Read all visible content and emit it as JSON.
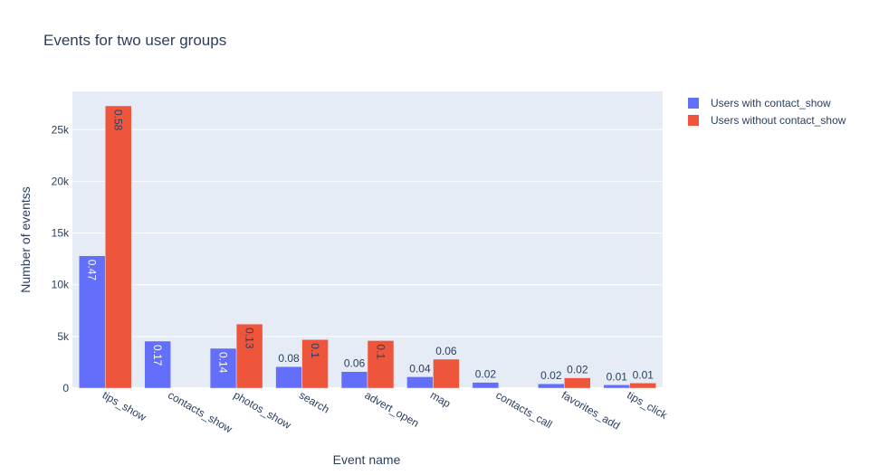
{
  "chart_data": {
    "type": "bar",
    "title": "Events for two user groups",
    "xlabel": "Event name",
    "ylabel": "Number of eventss",
    "categories": [
      "tips_show",
      "contacts_show",
      "photos_show",
      "search",
      "advert_open",
      "map",
      "contacts_call",
      "favorites_add",
      "tips_click"
    ],
    "series": [
      {
        "name": "Users with contact_show",
        "color": "#636efa",
        "values": [
          12800,
          4550,
          3850,
          2080,
          1600,
          1100,
          560,
          420,
          320
        ],
        "labels": [
          "0.47",
          "0.17",
          "0.14",
          "0.08",
          "0.06",
          "0.04",
          "0.02",
          "0.02",
          "0.01"
        ]
      },
      {
        "name": "Users without contact_show",
        "color": "#ef553b",
        "values": [
          27300,
          0,
          6200,
          4700,
          4600,
          2800,
          0,
          1000,
          500
        ],
        "labels": [
          "0.58",
          "",
          "0.13",
          "0.1",
          "0.1",
          "0.06",
          "",
          "0.02",
          "0.01"
        ]
      }
    ],
    "ylim": [
      0,
      28700
    ],
    "yticks": [
      0,
      5000,
      10000,
      15000,
      20000,
      25000
    ],
    "ytick_labels": [
      "0",
      "5k",
      "10k",
      "15k",
      "20k",
      "25k"
    ],
    "grid": true,
    "legend_position": "top-right",
    "plot_background": "#e5ecf6"
  }
}
